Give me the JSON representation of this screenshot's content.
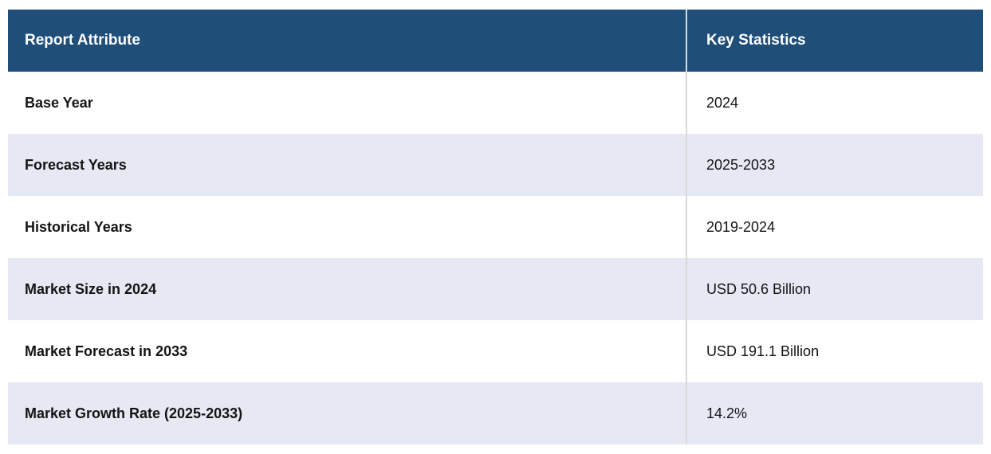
{
  "chart_data": {
    "type": "table",
    "columns": [
      "Report Attribute",
      "Key Statistics"
    ],
    "rows": [
      [
        "Base Year",
        "2024"
      ],
      [
        "Forecast Years",
        "2025-2033"
      ],
      [
        "Historical Years",
        "2019-2024"
      ],
      [
        "Market Size in 2024",
        "USD 50.6 Billion"
      ],
      [
        "Market Forecast in 2033",
        "USD 191.1 Billion"
      ],
      [
        "Market Growth Rate (2025-2033)",
        "14.2%"
      ]
    ],
    "layout_hints": {
      "header_style": "solid dark blue band, bold white text",
      "row_striping": "white / light lavender alternating, starting white",
      "grid": "vertical divider between columns only"
    }
  },
  "colors": {
    "header_bg": "#1f4e79",
    "header_text": "#ffffff",
    "row_bg": "#ffffff",
    "row_alt_bg": "#e6e8f3",
    "divider": "#d9d9d9",
    "body_text": "#141414"
  }
}
